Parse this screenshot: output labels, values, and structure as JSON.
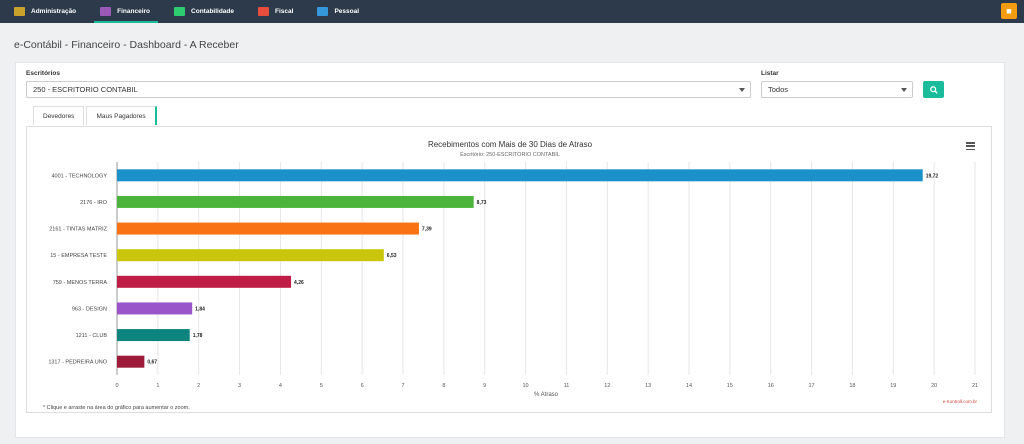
{
  "nav": {
    "items": [
      {
        "label": "Administração",
        "icon": "folder-icon",
        "color": "#c8a22a",
        "active": false
      },
      {
        "label": "Financeiro",
        "icon": "calculator-icon",
        "color": "#9b59b6",
        "active": true
      },
      {
        "label": "Contabilidade",
        "icon": "ledger-icon",
        "color": "#2ecc71",
        "active": false
      },
      {
        "label": "Fiscal",
        "icon": "document-icon",
        "color": "#e74c3c",
        "active": false
      },
      {
        "label": "Pessoal",
        "icon": "user-icon",
        "color": "#3498db",
        "active": false
      }
    ],
    "right_icon": "notification-icon",
    "right_color": "#f39c12"
  },
  "page": {
    "title": "e-Contábil - Financeiro - Dashboard - A Receber"
  },
  "filters": {
    "escritorios_label": "Escritórios",
    "escritorios_value": "250 - ESCRITORIO CONTABIL",
    "listar_label": "Listar",
    "listar_value": "Todos",
    "search_icon": "search-icon"
  },
  "tabs": [
    {
      "label": "Devedores",
      "active": false
    },
    {
      "label": "Maus Pagadores",
      "active": true
    }
  ],
  "chart": {
    "footnote": "* Clique e arraste na área do gráfico para aumentar o zoom.",
    "credits": "e-Kontroll.com.br"
  },
  "chart_data": {
    "type": "bar",
    "orientation": "horizontal",
    "title": "Recebimentos com Mais de 30 Dias de Atraso",
    "subtitle": "Escritório: 250-ESCRITORIO CONTABIL",
    "xlabel": "% Atraso",
    "ylabel": "",
    "xlim": [
      0,
      21
    ],
    "xticks": [
      0,
      1,
      2,
      3,
      4,
      5,
      6,
      7,
      8,
      9,
      10,
      11,
      12,
      13,
      14,
      15,
      16,
      17,
      18,
      19,
      20,
      21
    ],
    "grid": true,
    "categories": [
      "4001 - TECHNOLOGY",
      "2176 - IRO",
      "2161 - TINTAS MATRIZ",
      "15 - EMPRESA TESTE",
      "759 - MENOS TERRA",
      "963 - DESIGN",
      "1211 - CLUB",
      "1317 - PEDREIRA UNO"
    ],
    "values": [
      19.72,
      8.73,
      7.39,
      6.53,
      4.26,
      1.84,
      1.78,
      0.67
    ],
    "value_labels": [
      "19,72",
      "8,73",
      "7,39",
      "6,53",
      "4,26",
      "1,84",
      "1,78",
      "0,67"
    ],
    "colors": [
      "#1b91c9",
      "#4cb43b",
      "#f97315",
      "#c9c60b",
      "#bf1d45",
      "#9955c9",
      "#0d847e",
      "#9e1a3a"
    ]
  }
}
